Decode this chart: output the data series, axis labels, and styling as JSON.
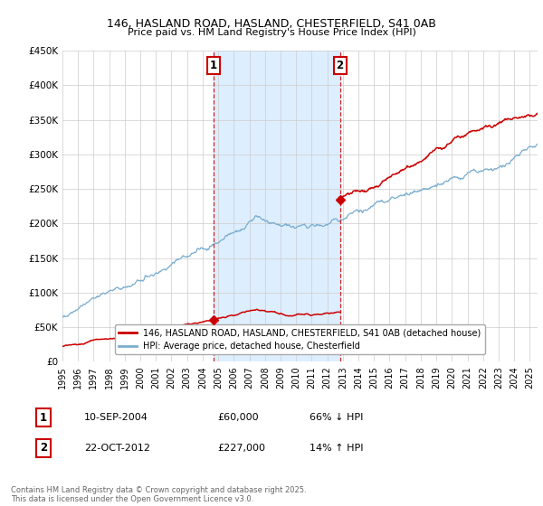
{
  "title": "146, HASLAND ROAD, HASLAND, CHESTERFIELD, S41 0AB",
  "subtitle": "Price paid vs. HM Land Registry's House Price Index (HPI)",
  "background_color": "#ffffff",
  "plot_bg_color": "#ffffff",
  "shade_color": "#ddeeff",
  "grid_color": "#cccccc",
  "red_line_color": "#cc0000",
  "blue_line_color": "#7aadcf",
  "transaction1": {
    "date_num": 2004.69,
    "price": 60000,
    "label": "1",
    "text": "10-SEP-2004",
    "price_str": "£60,000",
    "hpi_str": "66% ↓ HPI"
  },
  "transaction2": {
    "date_num": 2012.81,
    "price": 227000,
    "label": "2",
    "text": "22-OCT-2012",
    "price_str": "£227,000",
    "hpi_str": "14% ↑ HPI"
  },
  "vline_color": "#cc0000",
  "ylim": [
    0,
    450000
  ],
  "xlim_start": 1995,
  "xlim_end": 2025.5,
  "yticks": [
    0,
    50000,
    100000,
    150000,
    200000,
    250000,
    300000,
    350000,
    400000,
    450000
  ],
  "ytick_labels": [
    "£0",
    "£50K",
    "£100K",
    "£150K",
    "£200K",
    "£250K",
    "£300K",
    "£350K",
    "£400K",
    "£450K"
  ],
  "xticks": [
    1995,
    1996,
    1997,
    1998,
    1999,
    2000,
    2001,
    2002,
    2003,
    2004,
    2005,
    2006,
    2007,
    2008,
    2009,
    2010,
    2011,
    2012,
    2013,
    2014,
    2015,
    2016,
    2017,
    2018,
    2019,
    2020,
    2021,
    2022,
    2023,
    2024,
    2025
  ],
  "legend_line1": "146, HASLAND ROAD, HASLAND, CHESTERFIELD, S41 0AB (detached house)",
  "legend_line2": "HPI: Average price, detached house, Chesterfield",
  "footnote": "Contains HM Land Registry data © Crown copyright and database right 2025.\nThis data is licensed under the Open Government Licence v3.0.",
  "shade_x_start": 2004.69,
  "shade_x_end": 2012.81
}
